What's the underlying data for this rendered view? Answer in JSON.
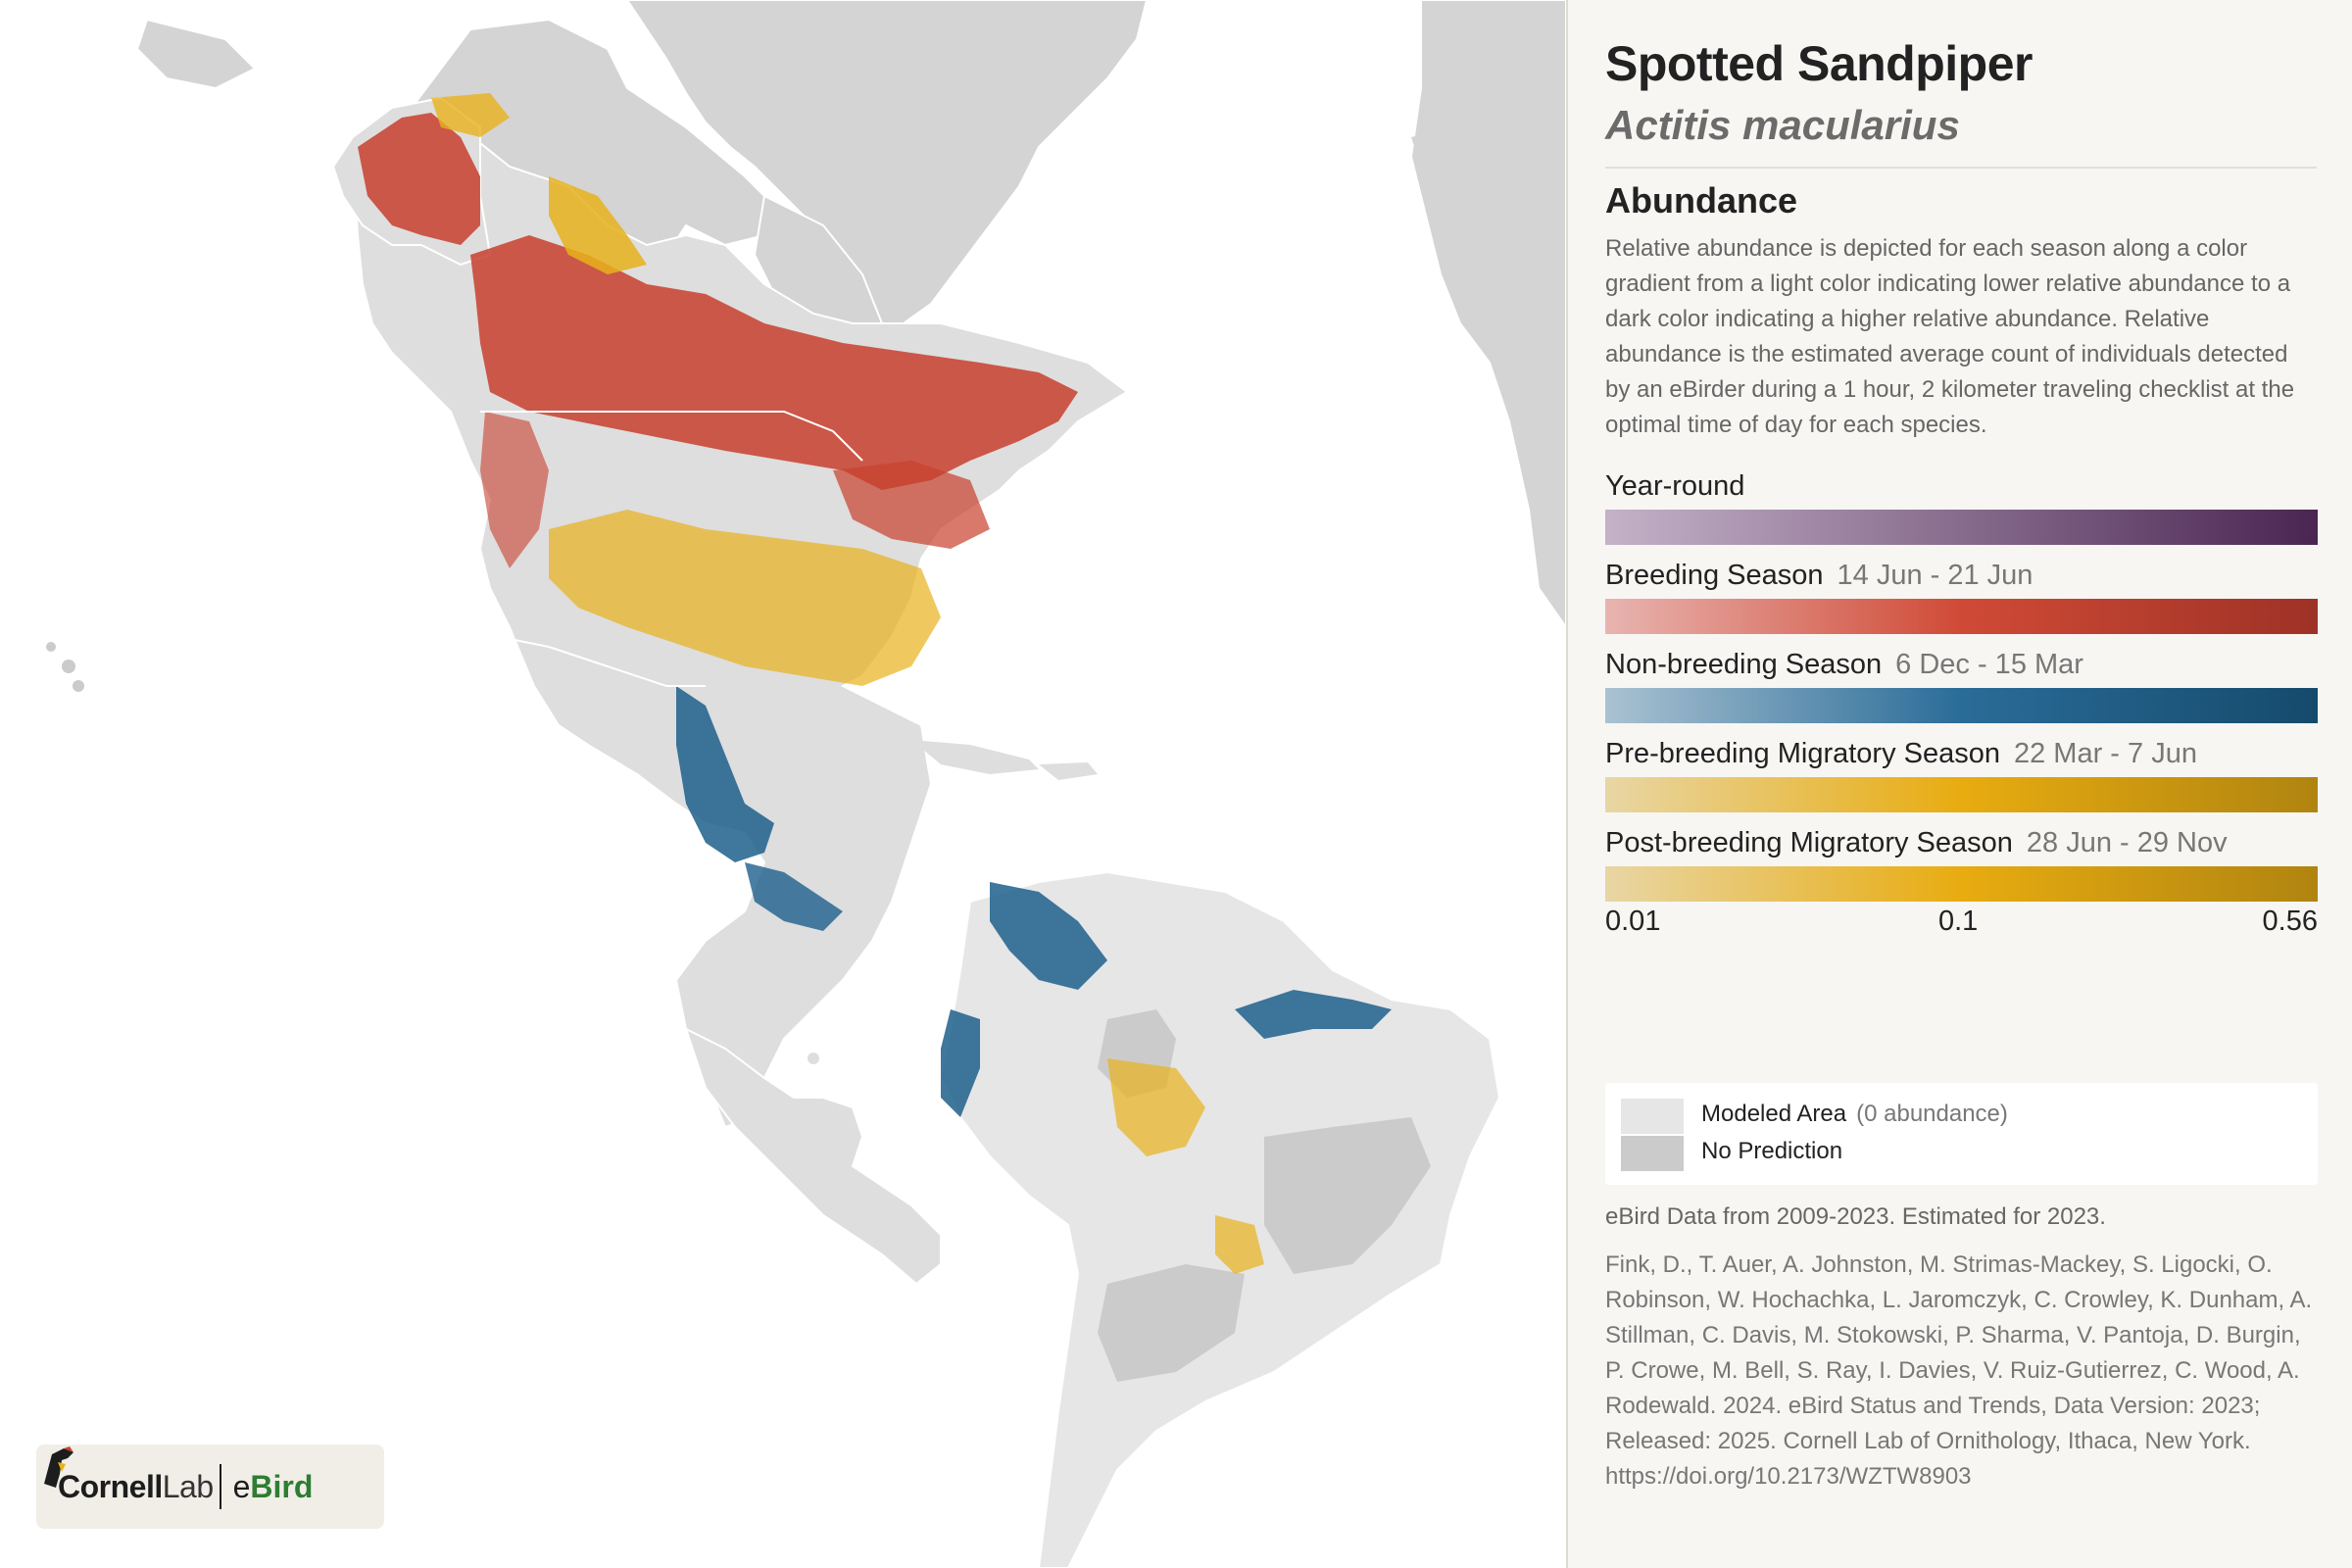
{
  "species": {
    "common_name": "Spotted Sandpiper",
    "scientific_name": "Actitis macularius"
  },
  "abundance": {
    "heading": "Abundance",
    "description": "Relative abundance is depicted for each season along a color gradient from a light color indicating lower relative abundance to a dark color indicating a higher relative abundance. Relative abundance is the estimated average count of individuals detected by an eBirder during a 1 hour, 2 kilometer traveling checklist at the optimal time of day for each species.",
    "seasons": [
      {
        "label": "Year-round",
        "dates": "",
        "color_light": "#c4b2c8",
        "color_dark": "#4a2552"
      },
      {
        "label": "Breeding Season",
        "dates": "14 Jun - 21 Jun",
        "color_light": "#e8b4b0",
        "color_mid": "#d04a36",
        "color_dark": "#9e3226"
      },
      {
        "label": "Non-breeding Season",
        "dates": "6 Dec - 15 Mar",
        "color_light": "#aac2d2",
        "color_mid": "#2a6c98",
        "color_dark": "#154a6c"
      },
      {
        "label": "Pre-breeding Migratory Season",
        "dates": "22 Mar - 7 Jun",
        "color_light": "#e8d6a4",
        "color_mid": "#e8ac10",
        "color_dark": "#b08410"
      },
      {
        "label": "Post-breeding Migratory Season",
        "dates": "28 Jun - 29 Nov",
        "color_light": "#e8d6a4",
        "color_mid": "#e8ac10",
        "color_dark": "#b08410"
      }
    ],
    "scale": {
      "min": "0.01",
      "mid": "0.1",
      "max": "0.56"
    }
  },
  "legend": {
    "modeled_area": "Modeled Area",
    "modeled_area_note": "(0 abundance)",
    "no_prediction": "No Prediction",
    "modeled_color": "#e6e6e6",
    "no_prediction_color": "#cbcbcb"
  },
  "data_years": "eBird Data from 2009-2023. Estimated for 2023.",
  "citation": "Fink, D., T. Auer, A. Johnston, M. Strimas-Mackey, S. Ligocki, O. Robinson, W. Hochachka, L. Jaromczyk, C. Crowley, K. Dunham, A. Stillman, C. Davis, M. Stokowski, P. Sharma, V. Pantoja, D. Burgin, P. Crowe, M. Bell, S. Ray, I. Davies, V. Ruiz-Gutierrez, C. Wood, A. Rodewald. 2024. eBird Status and Trends, Data Version: 2023; Released: 2025. Cornell Lab of Ornithology, Ithaca, New York. https://doi.org/10.2173/WZTW8903",
  "logo": {
    "cornell_a": "Cornell",
    "cornell_b": "Lab",
    "ebird_a": "e",
    "ebird_b": "Bird"
  },
  "map": {
    "land_color": "#dcdcdc",
    "modeled_color": "#e6e6e6",
    "no_prediction_color": "#cbcbcb",
    "breeding_color": "#c8402e",
    "nonbreeding_color": "#1d5f8c",
    "migration_color": "#e8b21c"
  }
}
